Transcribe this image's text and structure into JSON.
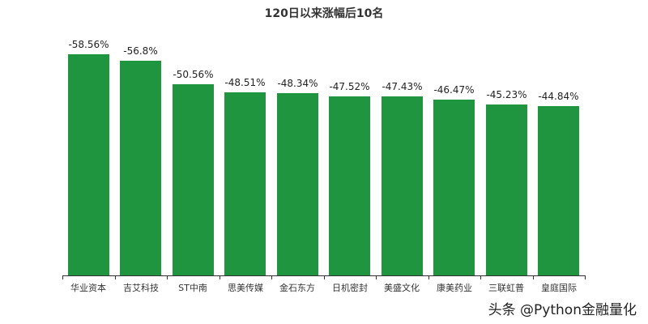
{
  "chart_data": {
    "type": "bar",
    "title": "120日以来涨幅后10名",
    "categories": [
      "华业资本",
      "吉艾科技",
      "ST中南",
      "思美传媒",
      "金石东方",
      "日机密封",
      "美盛文化",
      "康美药业",
      "三联虹普",
      "皇庭国际"
    ],
    "values": [
      -58.56,
      -56.8,
      -50.56,
      -48.51,
      -48.34,
      -47.52,
      -47.43,
      -46.47,
      -45.23,
      -44.84
    ],
    "labels": [
      "-58.56%",
      "-56.8%",
      "-50.56%",
      "-48.51%",
      "-48.34%",
      "-47.52%",
      "-47.43%",
      "-46.47%",
      "-45.23%",
      "-44.84%"
    ],
    "xlabel": "",
    "ylabel": "",
    "bar_color": "#1f9540",
    "grid": false,
    "legend": false
  },
  "watermark": "头条 @Python金融量化"
}
